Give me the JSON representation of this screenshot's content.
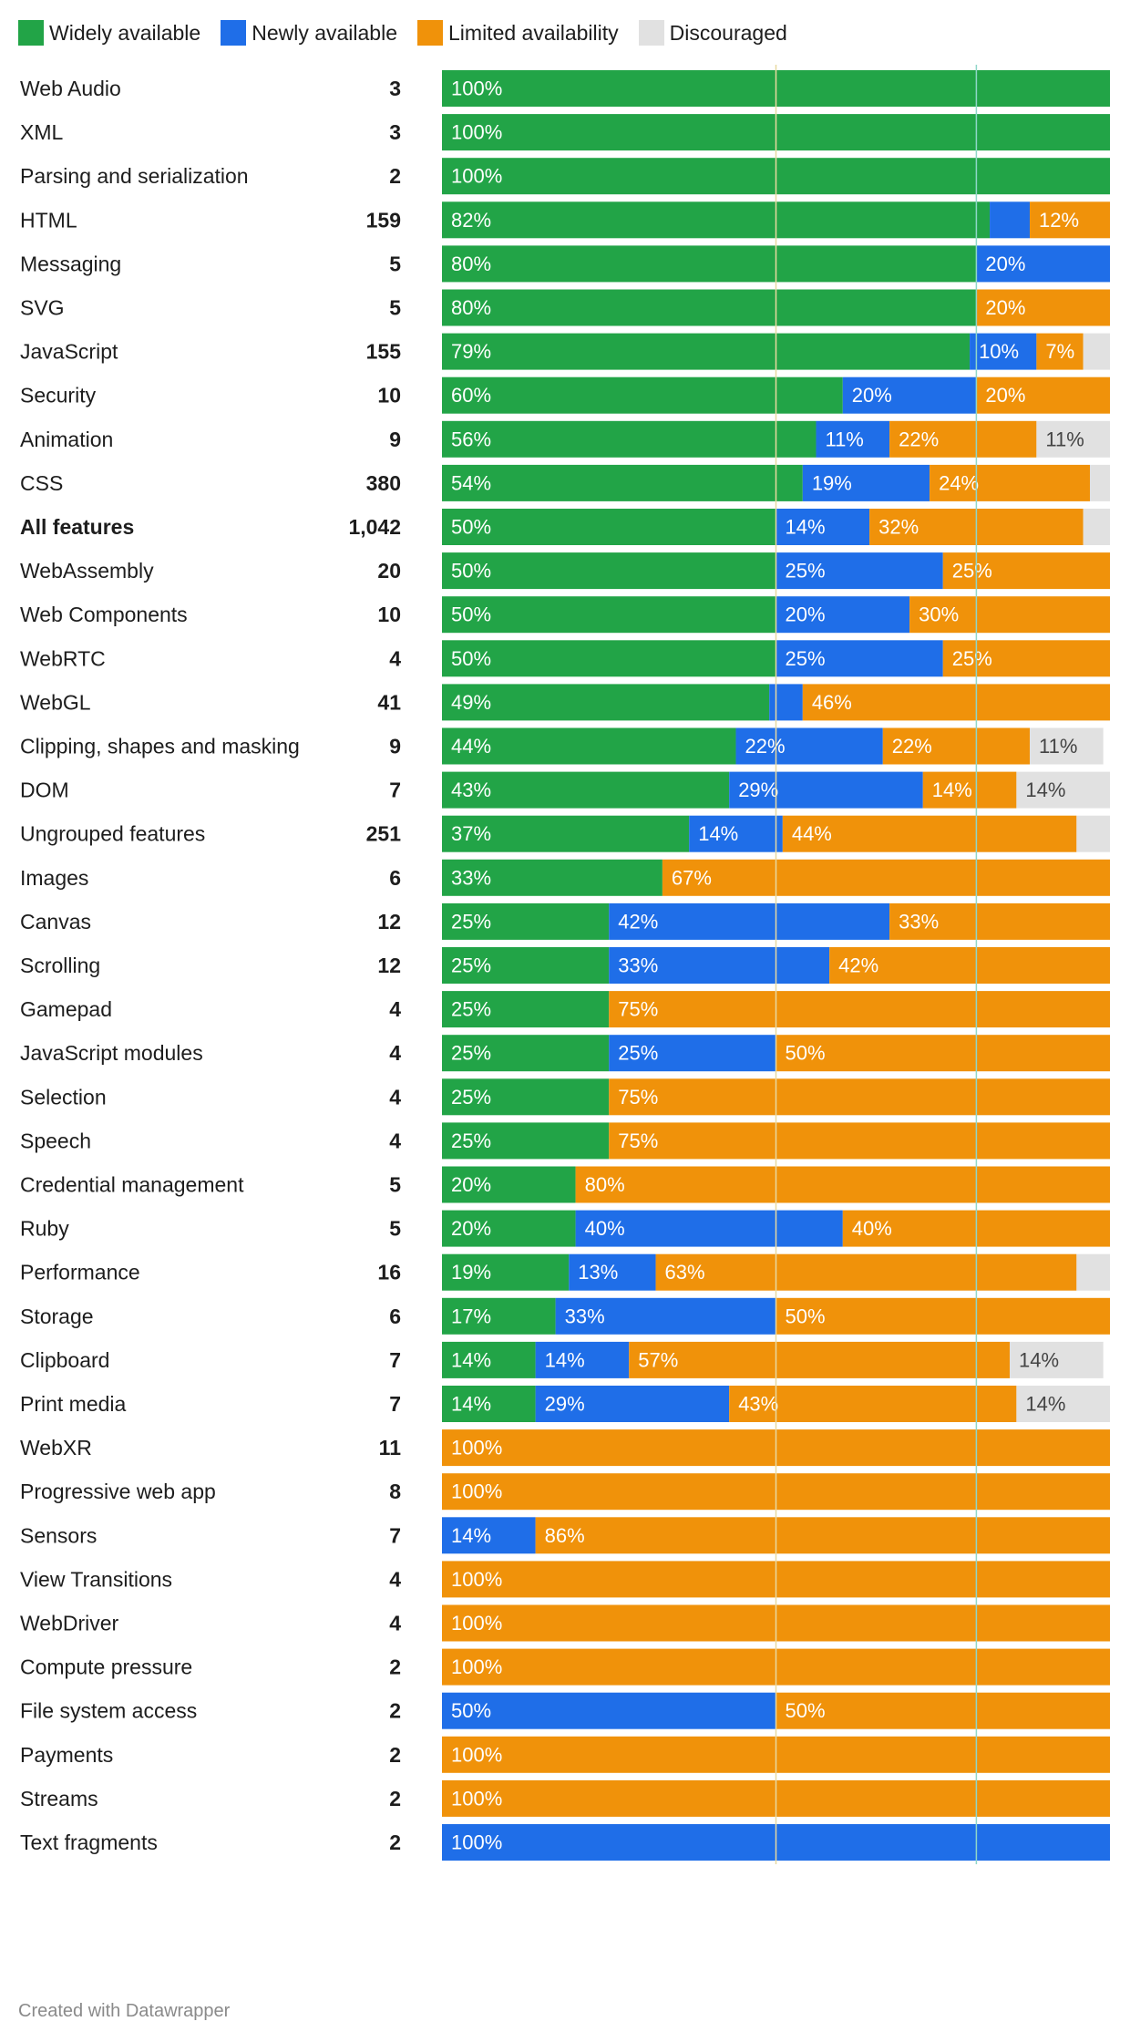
{
  "legend": [
    {
      "name": "Widely available",
      "color": "#22a447"
    },
    {
      "name": "Newly available",
      "color": "#1f6ee8"
    },
    {
      "name": "Limited availability",
      "color": "#f0920a"
    },
    {
      "name": "Discouraged",
      "color": "#e1e1e1"
    }
  ],
  "footer": "Created with Datawrapper",
  "chart_data": {
    "type": "bar",
    "orientation": "horizontal",
    "stacked": true,
    "series_names": [
      "Widely available",
      "Newly available",
      "Limited availability",
      "Discouraged"
    ],
    "xlim": [
      0,
      100
    ],
    "reference_lines": [
      50,
      80
    ],
    "rows": [
      {
        "label": "Web Audio",
        "count": "3",
        "values": [
          100,
          0,
          0,
          0
        ],
        "value_labels": [
          "100%",
          "",
          "",
          ""
        ]
      },
      {
        "label": "XML",
        "count": "3",
        "values": [
          100,
          0,
          0,
          0
        ],
        "value_labels": [
          "100%",
          "",
          "",
          ""
        ]
      },
      {
        "label": "Parsing and serialization",
        "count": "2",
        "values": [
          100,
          0,
          0,
          0
        ],
        "value_labels": [
          "100%",
          "",
          "",
          ""
        ]
      },
      {
        "label": "HTML",
        "count": "159",
        "values": [
          82,
          6,
          12,
          0
        ],
        "value_labels": [
          "82%",
          "",
          "12%",
          ""
        ]
      },
      {
        "label": "Messaging",
        "count": "5",
        "values": [
          80,
          20,
          0,
          0
        ],
        "value_labels": [
          "80%",
          "20%",
          "",
          ""
        ]
      },
      {
        "label": "SVG",
        "count": "5",
        "values": [
          80,
          0,
          20,
          0
        ],
        "value_labels": [
          "80%",
          "",
          "20%",
          ""
        ]
      },
      {
        "label": "JavaScript",
        "count": "155",
        "values": [
          79,
          10,
          7,
          4
        ],
        "value_labels": [
          "79%",
          "10%",
          "7%",
          ""
        ]
      },
      {
        "label": "Security",
        "count": "10",
        "values": [
          60,
          20,
          20,
          0
        ],
        "value_labels": [
          "60%",
          "20%",
          "20%",
          ""
        ]
      },
      {
        "label": "Animation",
        "count": "9",
        "values": [
          56,
          11,
          22,
          11
        ],
        "value_labels": [
          "56%",
          "11%",
          "22%",
          "11%"
        ]
      },
      {
        "label": "CSS",
        "count": "380",
        "values": [
          54,
          19,
          24,
          3
        ],
        "value_labels": [
          "54%",
          "19%",
          "24%",
          ""
        ]
      },
      {
        "label": "All features",
        "count": "1,042",
        "bold": true,
        "values": [
          50,
          14,
          32,
          4
        ],
        "value_labels": [
          "50%",
          "14%",
          "32%",
          ""
        ]
      },
      {
        "label": "WebAssembly",
        "count": "20",
        "values": [
          50,
          25,
          25,
          0
        ],
        "value_labels": [
          "50%",
          "25%",
          "25%",
          ""
        ]
      },
      {
        "label": "Web Components",
        "count": "10",
        "values": [
          50,
          20,
          30,
          0
        ],
        "value_labels": [
          "50%",
          "20%",
          "30%",
          ""
        ]
      },
      {
        "label": "WebRTC",
        "count": "4",
        "values": [
          50,
          25,
          25,
          0
        ],
        "value_labels": [
          "50%",
          "25%",
          "25%",
          ""
        ]
      },
      {
        "label": "WebGL",
        "count": "41",
        "values": [
          49,
          5,
          46,
          0
        ],
        "value_labels": [
          "49%",
          "",
          "46%",
          ""
        ]
      },
      {
        "label": "Clipping, shapes and masking",
        "count": "9",
        "values": [
          44,
          22,
          22,
          11
        ],
        "value_labels": [
          "44%",
          "22%",
          "22%",
          "11%"
        ]
      },
      {
        "label": "DOM",
        "count": "7",
        "values": [
          43,
          29,
          14,
          14
        ],
        "value_labels": [
          "43%",
          "29%",
          "14%",
          "14%"
        ]
      },
      {
        "label": "Ungrouped features",
        "count": "251",
        "values": [
          37,
          14,
          44,
          5
        ],
        "value_labels": [
          "37%",
          "14%",
          "44%",
          ""
        ]
      },
      {
        "label": "Images",
        "count": "6",
        "values": [
          33,
          0,
          67,
          0
        ],
        "value_labels": [
          "33%",
          "",
          "67%",
          ""
        ]
      },
      {
        "label": "Canvas",
        "count": "12",
        "values": [
          25,
          42,
          33,
          0
        ],
        "value_labels": [
          "25%",
          "42%",
          "33%",
          ""
        ]
      },
      {
        "label": "Scrolling",
        "count": "12",
        "values": [
          25,
          33,
          42,
          0
        ],
        "value_labels": [
          "25%",
          "33%",
          "42%",
          ""
        ]
      },
      {
        "label": "Gamepad",
        "count": "4",
        "values": [
          25,
          0,
          75,
          0
        ],
        "value_labels": [
          "25%",
          "",
          "75%",
          ""
        ]
      },
      {
        "label": "JavaScript modules",
        "count": "4",
        "values": [
          25,
          25,
          50,
          0
        ],
        "value_labels": [
          "25%",
          "25%",
          "50%",
          ""
        ]
      },
      {
        "label": "Selection",
        "count": "4",
        "values": [
          25,
          0,
          75,
          0
        ],
        "value_labels": [
          "25%",
          "",
          "75%",
          ""
        ]
      },
      {
        "label": "Speech",
        "count": "4",
        "values": [
          25,
          0,
          75,
          0
        ],
        "value_labels": [
          "25%",
          "",
          "75%",
          ""
        ]
      },
      {
        "label": "Credential management",
        "count": "5",
        "values": [
          20,
          0,
          80,
          0
        ],
        "value_labels": [
          "20%",
          "",
          "80%",
          ""
        ]
      },
      {
        "label": "Ruby",
        "count": "5",
        "values": [
          20,
          40,
          40,
          0
        ],
        "value_labels": [
          "20%",
          "40%",
          "40%",
          ""
        ]
      },
      {
        "label": "Performance",
        "count": "16",
        "values": [
          19,
          13,
          63,
          5
        ],
        "value_labels": [
          "19%",
          "13%",
          "63%",
          ""
        ]
      },
      {
        "label": "Storage",
        "count": "6",
        "values": [
          17,
          33,
          50,
          0
        ],
        "value_labels": [
          "17%",
          "33%",
          "50%",
          ""
        ]
      },
      {
        "label": "Clipboard",
        "count": "7",
        "values": [
          14,
          14,
          57,
          14
        ],
        "value_labels": [
          "14%",
          "14%",
          "57%",
          "14%"
        ]
      },
      {
        "label": "Print media",
        "count": "7",
        "values": [
          14,
          29,
          43,
          14
        ],
        "value_labels": [
          "14%",
          "29%",
          "43%",
          "14%"
        ]
      },
      {
        "label": "WebXR",
        "count": "11",
        "values": [
          0,
          0,
          100,
          0
        ],
        "value_labels": [
          "",
          "",
          "100%",
          ""
        ]
      },
      {
        "label": "Progressive web app",
        "count": "8",
        "values": [
          0,
          0,
          100,
          0
        ],
        "value_labels": [
          "",
          "",
          "100%",
          ""
        ]
      },
      {
        "label": "Sensors",
        "count": "7",
        "values": [
          0,
          14,
          86,
          0
        ],
        "value_labels": [
          "",
          "14%",
          "86%",
          ""
        ]
      },
      {
        "label": "View Transitions",
        "count": "4",
        "values": [
          0,
          0,
          100,
          0
        ],
        "value_labels": [
          "",
          "",
          "100%",
          ""
        ]
      },
      {
        "label": "WebDriver",
        "count": "4",
        "values": [
          0,
          0,
          100,
          0
        ],
        "value_labels": [
          "",
          "",
          "100%",
          ""
        ]
      },
      {
        "label": "Compute pressure",
        "count": "2",
        "values": [
          0,
          0,
          100,
          0
        ],
        "value_labels": [
          "",
          "",
          "100%",
          ""
        ]
      },
      {
        "label": "File system access",
        "count": "2",
        "values": [
          0,
          50,
          50,
          0
        ],
        "value_labels": [
          "",
          "50%",
          "50%",
          ""
        ]
      },
      {
        "label": "Payments",
        "count": "2",
        "values": [
          0,
          0,
          100,
          0
        ],
        "value_labels": [
          "",
          "",
          "100%",
          ""
        ]
      },
      {
        "label": "Streams",
        "count": "2",
        "values": [
          0,
          0,
          100,
          0
        ],
        "value_labels": [
          "",
          "",
          "100%",
          ""
        ]
      },
      {
        "label": "Text fragments",
        "count": "2",
        "values": [
          0,
          100,
          0,
          0
        ],
        "value_labels": [
          "",
          "100%",
          "",
          ""
        ]
      }
    ]
  }
}
